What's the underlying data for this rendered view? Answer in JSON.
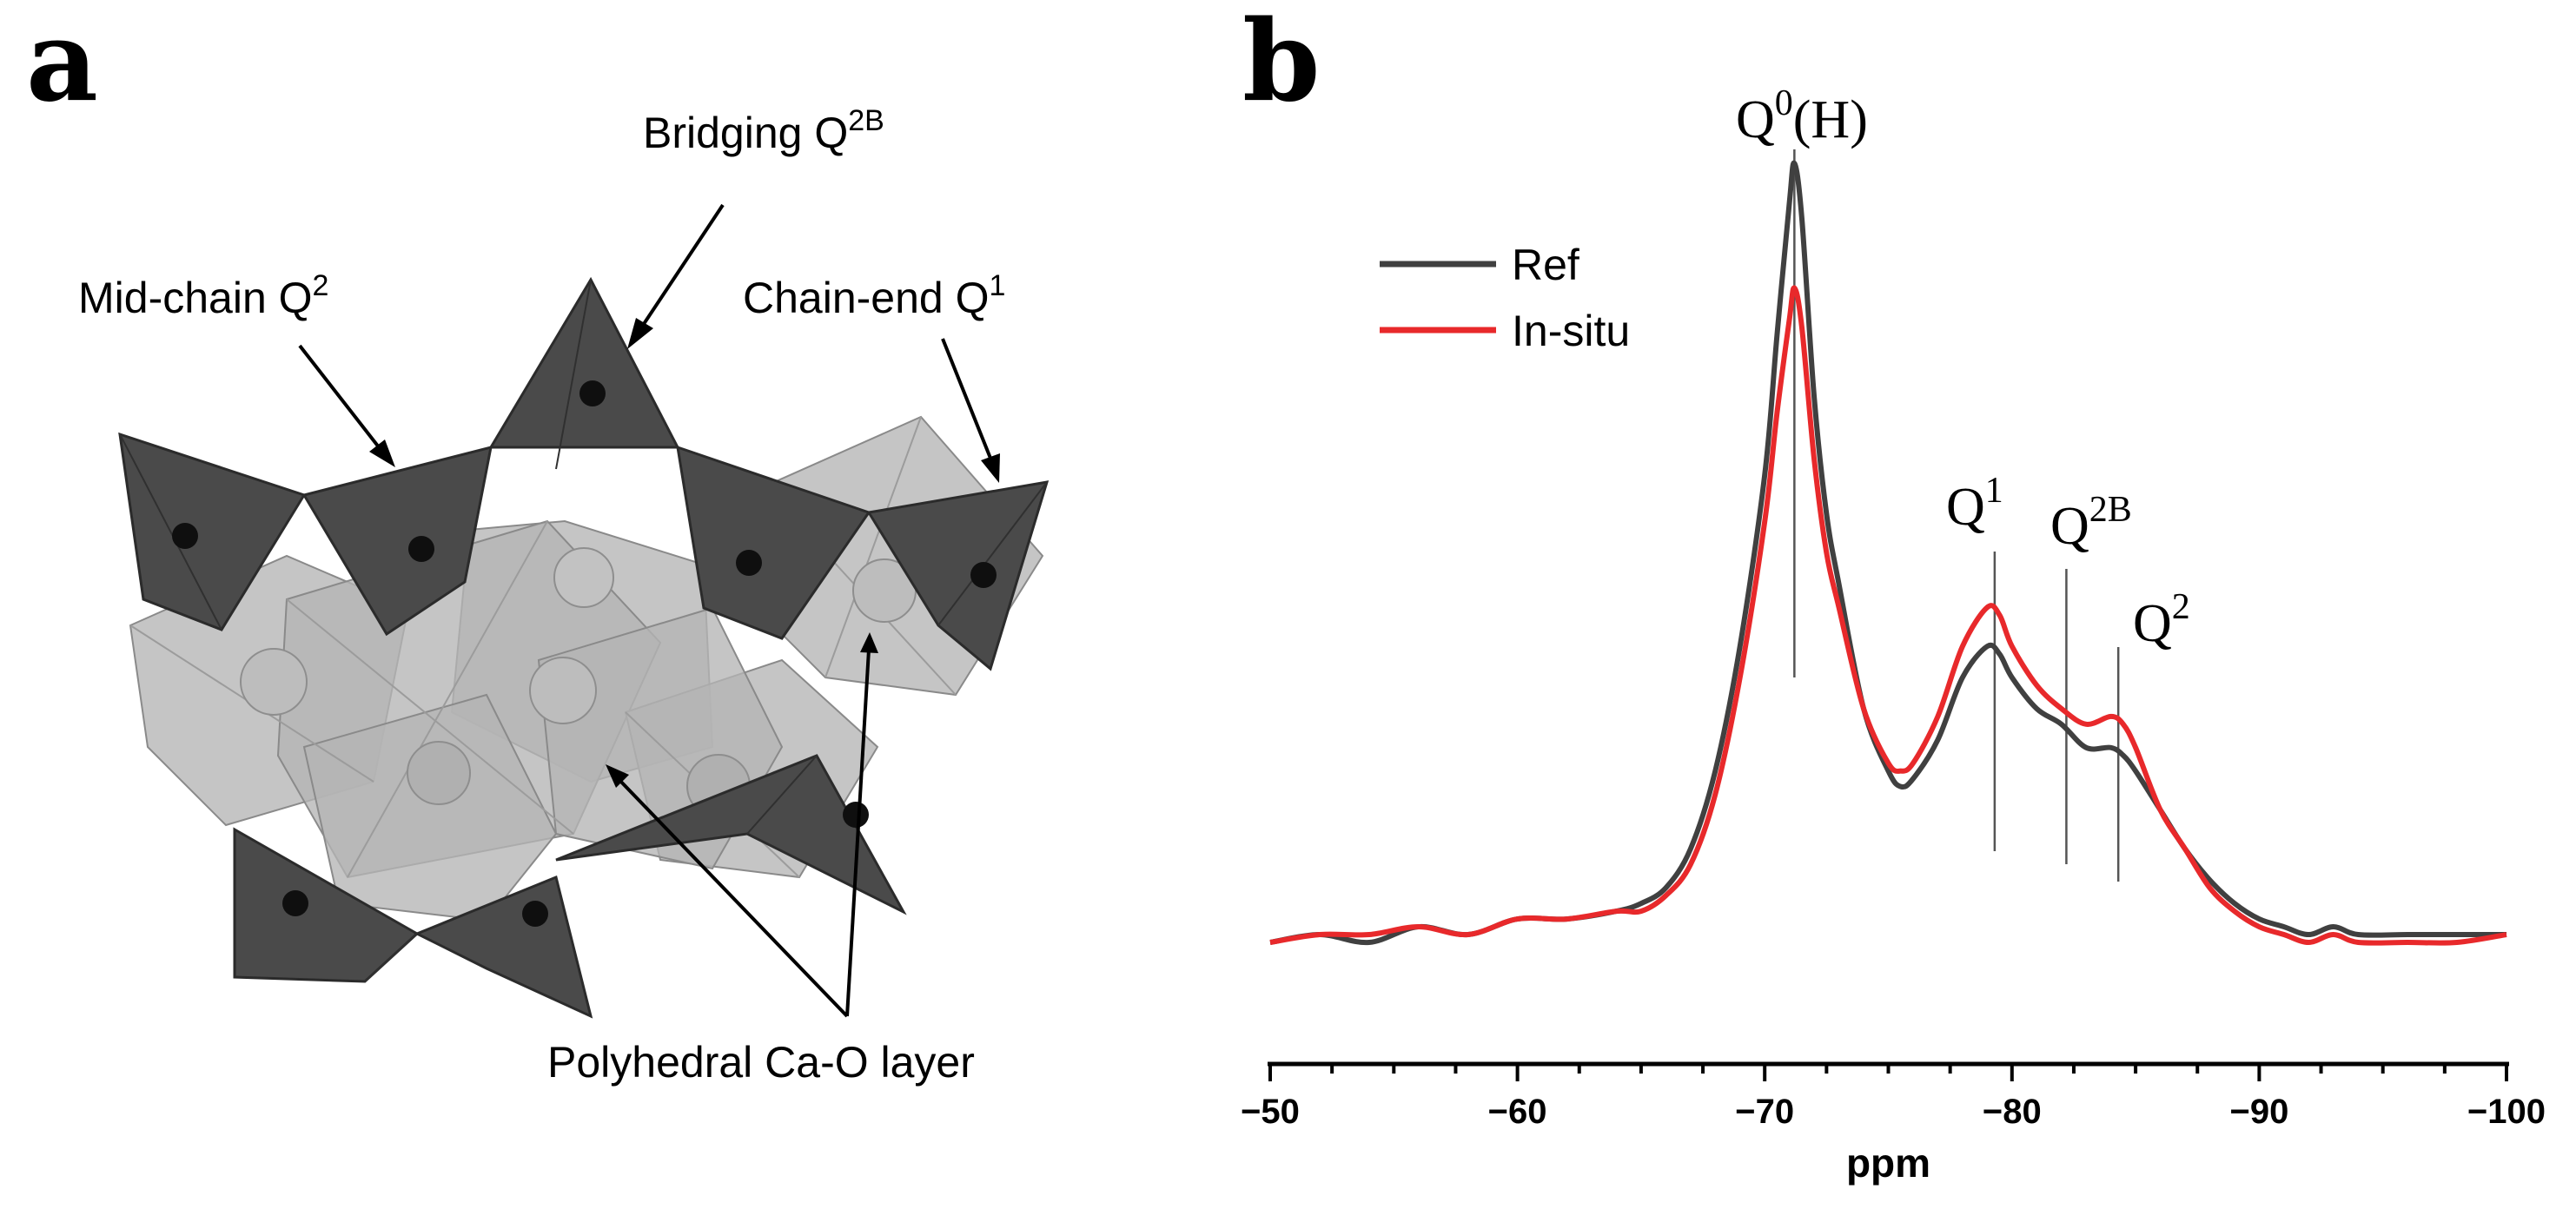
{
  "panel_a": {
    "letter": "a",
    "labels": {
      "bridging": {
        "text": "Bridging Q",
        "sup": "2B"
      },
      "midchain": {
        "text": "Mid-chain Q",
        "sup": "2"
      },
      "chainend": {
        "text": "Chain-end Q",
        "sup": "1"
      },
      "layer": {
        "text": "Polyhedral Ca-O layer"
      }
    }
  },
  "panel_b": {
    "letter": "b",
    "peak_labels": {
      "q0": {
        "base": "Q",
        "sup": "0",
        "suffix": "(H)"
      },
      "q1": {
        "base": "Q",
        "sup": "1"
      },
      "q2b": {
        "base": "Q",
        "sup": "2B"
      },
      "q2": {
        "base": "Q",
        "sup": "2"
      }
    }
  },
  "colors": {
    "ref": "#404040",
    "insitu": "#e8292b",
    "tet_dark": "#4a4a4a",
    "oct_light": "#b5b5b5"
  },
  "chart_data": {
    "type": "line",
    "title": "",
    "xlabel": "ppm",
    "ylabel": "",
    "xlim": [
      -50,
      -100
    ],
    "ylim": [
      0,
      1.0
    ],
    "xticks": [
      -50,
      -60,
      -70,
      -80,
      -90,
      -100
    ],
    "xtick_labels": [
      "−50",
      "−60",
      "−70",
      "−80",
      "−90",
      "−100"
    ],
    "legend": {
      "position": "top-left",
      "entries": [
        "Ref",
        "In-situ"
      ]
    },
    "peak_markers": [
      {
        "name": "Q0(H)",
        "ppm": -71.2
      },
      {
        "name": "Q1",
        "ppm": -79.3
      },
      {
        "name": "Q2B",
        "ppm": -82.2
      },
      {
        "name": "Q2",
        "ppm": -84.3
      }
    ],
    "series": [
      {
        "name": "Ref",
        "color": "#404040",
        "x": [
          -50,
          -52,
          -54,
          -56,
          -58,
          -60,
          -62,
          -64,
          -65,
          -66,
          -67,
          -68,
          -69,
          -70,
          -70.5,
          -71,
          -71.2,
          -71.5,
          -72,
          -72.5,
          -73,
          -74,
          -75,
          -75.5,
          -76,
          -77,
          -78,
          -79,
          -79.5,
          -80,
          -81,
          -82,
          -83,
          -84,
          -84.5,
          -85,
          -86,
          -87,
          -88,
          -89,
          -90,
          -91,
          -92,
          -93,
          -94,
          -96,
          -98,
          -100
        ],
        "y": [
          0.0,
          0.01,
          0.0,
          0.02,
          0.01,
          0.03,
          0.03,
          0.04,
          0.05,
          0.07,
          0.12,
          0.22,
          0.38,
          0.6,
          0.78,
          0.95,
          1.0,
          0.93,
          0.7,
          0.55,
          0.46,
          0.3,
          0.22,
          0.2,
          0.21,
          0.26,
          0.34,
          0.38,
          0.37,
          0.34,
          0.3,
          0.28,
          0.25,
          0.25,
          0.24,
          0.22,
          0.17,
          0.12,
          0.08,
          0.05,
          0.03,
          0.02,
          0.01,
          0.02,
          0.01,
          0.01,
          0.01,
          0.01
        ]
      },
      {
        "name": "In-situ",
        "color": "#e8292b",
        "x": [
          -50,
          -52,
          -54,
          -56,
          -58,
          -60,
          -62,
          -64,
          -65,
          -66,
          -67,
          -68,
          -69,
          -70,
          -70.5,
          -71,
          -71.2,
          -71.5,
          -72,
          -72.5,
          -73,
          -74,
          -75,
          -75.5,
          -76,
          -77,
          -78,
          -79,
          -79.5,
          -80,
          -81,
          -82,
          -83,
          -84,
          -84.5,
          -85,
          -86,
          -87,
          -88,
          -89,
          -90,
          -91,
          -92,
          -93,
          -94,
          -96,
          -98,
          -100
        ],
        "y": [
          0.0,
          0.01,
          0.01,
          0.02,
          0.01,
          0.03,
          0.03,
          0.04,
          0.04,
          0.06,
          0.1,
          0.19,
          0.34,
          0.54,
          0.68,
          0.8,
          0.84,
          0.79,
          0.62,
          0.5,
          0.43,
          0.3,
          0.23,
          0.22,
          0.23,
          0.29,
          0.38,
          0.43,
          0.42,
          0.38,
          0.33,
          0.3,
          0.28,
          0.29,
          0.28,
          0.25,
          0.17,
          0.12,
          0.07,
          0.04,
          0.02,
          0.01,
          0.0,
          0.01,
          0.0,
          0.0,
          0.0,
          0.01
        ]
      }
    ]
  }
}
